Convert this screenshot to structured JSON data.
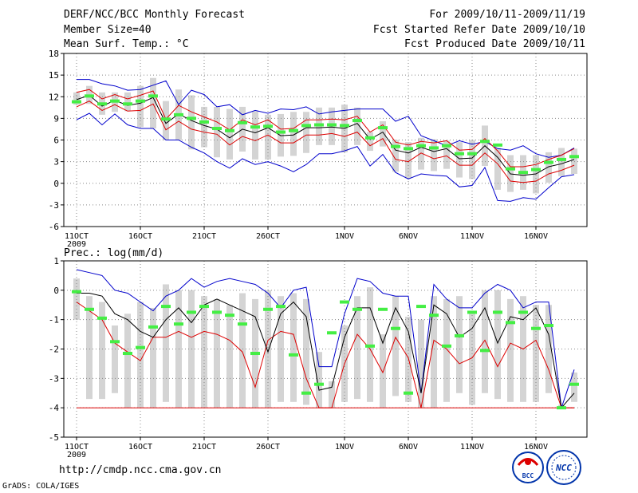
{
  "header": {
    "title": "DERF/NCC/BCC Monthly Forecast",
    "member_size": "Member Size=40",
    "variable": "Mean Surf. Temp.: °C",
    "period": "For 2009/10/11-2009/11/19",
    "started": "Fcst Started Refer Date 2009/10/10",
    "produced": "Fcst Produced Date 2009/10/11"
  },
  "footer": {
    "url": "http://cmdp.ncc.cma.gov.cn",
    "credit": "GrADS: COLA/IGES",
    "logo_bcc": "BCC",
    "logo_ncc": "NCC"
  },
  "colors": {
    "box": "#d4d4d4",
    "mean": "#000000",
    "spread": "#dd0000",
    "extreme": "#0000cc",
    "marker": "#44ee44",
    "grid": "#888888"
  },
  "chart_data": [
    {
      "type": "line",
      "title": "Mean Surf. Temp.: °C",
      "x_tick_labels": [
        "11OCT",
        "16OCT",
        "21OCT",
        "26OCT",
        "1NOV",
        "6NOV",
        "11NOV",
        "16NOV"
      ],
      "x_tick_days": [
        1,
        6,
        11,
        16,
        22,
        27,
        32,
        37
      ],
      "year_label": "2009",
      "days": 40,
      "ylim": [
        -6,
        18
      ],
      "yticks": [
        -6,
        -3,
        0,
        3,
        6,
        9,
        12,
        15,
        18
      ],
      "series": [
        {
          "name": "max",
          "values": [
            14.4,
            14.4,
            13.8,
            13.5,
            12.9,
            13.0,
            13.6,
            14.2,
            10.9,
            12.9,
            12.3,
            10.6,
            10.9,
            9.5,
            10.1,
            9.7,
            10.3,
            10.2,
            10.6,
            9.6,
            9.9,
            10.1,
            10.3,
            10.3,
            10.3,
            8.6,
            9.3,
            6.6,
            5.9,
            5.2,
            5.9,
            5.4,
            5.8,
            4.8,
            4.6,
            5.2,
            4.1,
            3.6,
            3.9,
            4.9
          ]
        },
        {
          "name": "upper",
          "values": [
            12.6,
            13.0,
            11.7,
            12.3,
            11.7,
            12.2,
            12.8,
            8.9,
            10.8,
            9.9,
            9.2,
            8.5,
            7.4,
            8.8,
            8.1,
            8.8,
            7.5,
            7.6,
            8.8,
            8.8,
            8.9,
            8.8,
            9.3,
            7.1,
            8.1,
            5.7,
            5.3,
            5.8,
            5.6,
            5.9,
            4.6,
            4.7,
            6.2,
            4.5,
            2.3,
            2.3,
            2.6,
            3.3,
            3.9,
            4.8
          ]
        },
        {
          "name": "mean",
          "values": [
            11.6,
            12.2,
            10.7,
            11.5,
            10.8,
            11.1,
            11.9,
            8.3,
            9.6,
            8.7,
            8.0,
            7.5,
            6.3,
            7.5,
            7.0,
            7.7,
            6.6,
            6.7,
            7.7,
            7.7,
            7.8,
            7.6,
            8.3,
            6.1,
            7.1,
            4.6,
            4.2,
            5.0,
            4.4,
            4.8,
            3.4,
            3.5,
            5.2,
            3.6,
            1.3,
            1.1,
            1.3,
            2.3,
            2.7,
            3.3
          ]
        },
        {
          "name": "lower",
          "values": [
            10.6,
            11.4,
            10.1,
            10.9,
            10.0,
            10.1,
            11.0,
            7.4,
            8.6,
            7.5,
            7.1,
            6.8,
            5.3,
            6.5,
            5.9,
            6.7,
            5.6,
            5.6,
            6.7,
            6.7,
            6.9,
            6.5,
            7.1,
            5.2,
            6.2,
            3.3,
            3.0,
            4.2,
            3.4,
            3.8,
            2.5,
            2.5,
            4.2,
            2.7,
            0.3,
            0.1,
            0.3,
            1.3,
            1.8,
            2.5
          ]
        },
        {
          "name": "min",
          "values": [
            8.8,
            9.7,
            8.1,
            9.6,
            8.1,
            7.6,
            7.6,
            6.0,
            6.0,
            5.0,
            4.2,
            3.0,
            2.1,
            3.4,
            2.6,
            3.0,
            2.4,
            1.6,
            2.6,
            4.1,
            4.1,
            4.5,
            5.1,
            2.4,
            4.0,
            1.5,
            0.6,
            1.3,
            1.1,
            1.0,
            -0.5,
            -0.3,
            2.2,
            -2.4,
            -2.5,
            -2.0,
            -2.2,
            -0.6,
            0.9,
            1.2
          ]
        },
        {
          "name": "box_high",
          "values": [
            12.6,
            13.5,
            12.6,
            12.6,
            12.6,
            13.5,
            14.6,
            11.4,
            13.0,
            12.2,
            10.6,
            10.6,
            10.3,
            10.6,
            10.0,
            9.5,
            9.6,
            9.9,
            9.9,
            10.5,
            10.5,
            10.9,
            10.5,
            7.1,
            8.6,
            6.0,
            5.7,
            6.3,
            6.1,
            5.9,
            5.7,
            6.0,
            8.0,
            4.9,
            3.9,
            3.9,
            3.9,
            4.3,
            4.9,
            4.8
          ]
        },
        {
          "name": "box_low",
          "values": [
            10.9,
            11.0,
            9.5,
            9.9,
            10.0,
            7.8,
            7.6,
            6.0,
            6.0,
            4.7,
            5.0,
            3.6,
            3.3,
            4.4,
            3.3,
            3.3,
            3.7,
            3.8,
            4.2,
            5.3,
            5.3,
            4.3,
            5.3,
            4.5,
            5.1,
            1.6,
            0.7,
            1.9,
            1.7,
            2.0,
            0.8,
            0.6,
            2.4,
            -0.9,
            -1.2,
            -0.9,
            -1.4,
            0.1,
            1.0,
            1.3
          ]
        },
        {
          "name": "ensemble_marker",
          "values": [
            11.3,
            12.1,
            11.0,
            11.4,
            11.0,
            11.4,
            12.1,
            8.9,
            9.5,
            9.0,
            8.5,
            7.6,
            7.3,
            8.4,
            7.8,
            7.9,
            7.1,
            7.3,
            8.0,
            8.1,
            8.1,
            8.0,
            8.7,
            6.3,
            7.7,
            5.1,
            4.8,
            5.2,
            4.9,
            5.2,
            4.1,
            4.1,
            5.8,
            5.3,
            2.0,
            1.5,
            1.9,
            2.9,
            3.3,
            3.7
          ]
        }
      ]
    },
    {
      "type": "line",
      "title": "Prec.: log(mm/d)",
      "x_tick_labels": [
        "11OCT",
        "16OCT",
        "21OCT",
        "26OCT",
        "1NOV",
        "6NOV",
        "11NOV",
        "16NOV"
      ],
      "x_tick_days": [
        1,
        6,
        11,
        16,
        22,
        27,
        32,
        37
      ],
      "year_label": "2009",
      "days": 40,
      "ylim": [
        -5,
        1
      ],
      "yticks": [
        -5,
        -4,
        -3,
        -2,
        -1,
        0,
        1
      ],
      "series": [
        {
          "name": "max",
          "values": [
            0.7,
            0.6,
            0.5,
            0.0,
            -0.1,
            -0.4,
            -0.7,
            -0.2,
            0.0,
            0.4,
            0.1,
            0.3,
            0.4,
            0.3,
            0.2,
            -0.1,
            -0.6,
            0.0,
            0.1,
            -2.6,
            -2.6,
            -0.8,
            0.4,
            0.3,
            -0.1,
            -0.2,
            -0.2,
            -3.5,
            0.2,
            -0.3,
            -0.6,
            -0.6,
            -0.1,
            0.2,
            0.0,
            -0.6,
            -0.4,
            -0.4,
            -4.0,
            -2.7
          ]
        },
        {
          "name": "mean",
          "values": [
            -0.1,
            -0.1,
            -0.2,
            -0.8,
            -1.0,
            -1.4,
            -1.6,
            -1.0,
            -0.6,
            -1.1,
            -0.5,
            -0.3,
            -0.5,
            -0.7,
            -0.9,
            -2.1,
            -0.8,
            -0.4,
            -0.9,
            -3.4,
            -3.3,
            -1.6,
            -0.6,
            -0.6,
            -1.8,
            -0.6,
            -1.4,
            -3.5,
            -0.5,
            -0.8,
            -1.6,
            -1.3,
            -0.6,
            -1.8,
            -0.9,
            -1.0,
            -0.6,
            -1.5,
            -4.0,
            -3.5
          ]
        },
        {
          "name": "lower",
          "values": [
            -0.4,
            -0.7,
            -1.0,
            -1.8,
            -2.1,
            -2.4,
            -1.6,
            -1.6,
            -1.4,
            -1.6,
            -1.4,
            -1.5,
            -1.7,
            -2.1,
            -3.3,
            -1.7,
            -1.4,
            -1.5,
            -3.0,
            -4.0,
            -4.0,
            -2.5,
            -1.5,
            -2.0,
            -2.8,
            -1.6,
            -2.3,
            -4.0,
            -1.7,
            -2.0,
            -2.5,
            -2.3,
            -1.7,
            -2.6,
            -1.8,
            -2.0,
            -1.7,
            -2.7,
            -4.0,
            -4.0
          ]
        },
        {
          "name": "min",
          "values": [
            -4.0,
            -4.0,
            -4.0,
            -4.0,
            -4.0,
            -4.0,
            -4.0,
            -4.0,
            -4.0,
            -4.0,
            -4.0,
            -4.0,
            -4.0,
            -4.0,
            -4.0,
            -4.0,
            -4.0,
            -4.0,
            -4.0,
            -4.0,
            -4.0,
            -4.0,
            -4.0,
            -4.0,
            -4.0,
            -4.0,
            -4.0,
            -4.0,
            -4.0,
            -4.0,
            -4.0,
            -4.0,
            -4.0,
            -4.0,
            -4.0,
            -4.0,
            -4.0,
            -4.0,
            -4.0,
            -4.0
          ]
        },
        {
          "name": "box_high",
          "values": [
            0.4,
            -0.2,
            -0.4,
            -1.2,
            -0.8,
            -0.4,
            -0.6,
            0.2,
            0.0,
            0.0,
            -0.2,
            -0.3,
            -0.5,
            -0.1,
            -0.3,
            0.0,
            -0.2,
            -0.1,
            -0.3,
            -2.1,
            -3.1,
            -1.2,
            -0.2,
            0.1,
            -1.5,
            -0.2,
            -0.9,
            -1.0,
            -0.2,
            -0.3,
            -0.2,
            -0.8,
            0.0,
            0.0,
            -0.3,
            -0.2,
            -0.5,
            -0.5,
            -3.9,
            -2.8
          ]
        },
        {
          "name": "box_low",
          "values": [
            -1.0,
            -3.7,
            -3.7,
            -3.5,
            -4.0,
            -4.0,
            -4.0,
            -3.8,
            -4.0,
            -4.0,
            -4.0,
            -4.0,
            -4.0,
            -4.0,
            -4.0,
            -4.0,
            -3.8,
            -3.8,
            -3.9,
            -4.0,
            -4.0,
            -3.8,
            -3.7,
            -3.8,
            -4.0,
            -3.6,
            -3.8,
            -4.0,
            -4.0,
            -3.8,
            -3.5,
            -3.9,
            -3.5,
            -3.7,
            -3.8,
            -3.8,
            -3.8,
            -3.5,
            -4.0,
            -3.8
          ]
        },
        {
          "name": "ensemble_marker",
          "values": [
            -0.05,
            -0.65,
            -0.95,
            -1.75,
            -2.15,
            -1.95,
            -1.25,
            -0.55,
            -1.15,
            -0.75,
            -0.55,
            -0.75,
            -0.85,
            -1.15,
            -2.15,
            -0.65,
            -0.55,
            -2.2,
            -3.5,
            -3.2,
            -1.45,
            -0.4,
            -0.65,
            -1.9,
            -0.65,
            -1.3,
            -3.5,
            -0.55,
            -0.85,
            -1.9,
            -1.55,
            -0.75,
            -2.05,
            -0.75,
            -1.1,
            -0.75,
            -1.3,
            -1.2,
            -4.0,
            -3.2
          ]
        }
      ]
    }
  ]
}
